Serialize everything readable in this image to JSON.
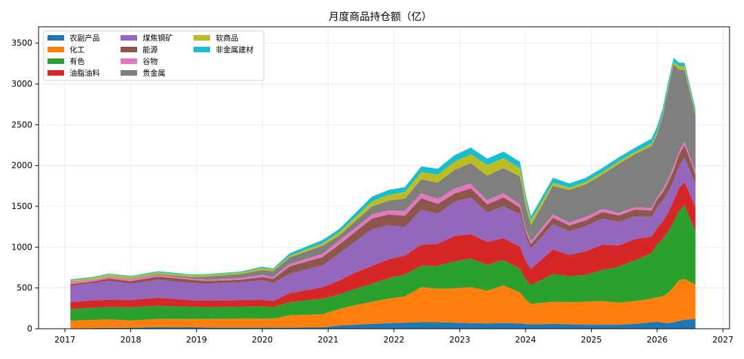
{
  "chart_data": {
    "type": "area",
    "stacked": true,
    "title": "月度商品持仓额（亿）",
    "xlabel": "",
    "ylabel": "",
    "xlim": [
      2016.6,
      2027.1
    ],
    "ylim": [
      0,
      3700
    ],
    "x_ticks": [
      2017,
      2018,
      2019,
      2020,
      2021,
      2022,
      2023,
      2024,
      2025,
      2026,
      2027
    ],
    "y_ticks": [
      0,
      500,
      1000,
      1500,
      2000,
      2500,
      3000,
      3500
    ],
    "grid": true,
    "legend_position": "top-left",
    "x": [
      "2017-02",
      "2017-06",
      "2017-09",
      "2018-01",
      "2018-06",
      "2018-12",
      "2019-03",
      "2019-09",
      "2020-01",
      "2020-03",
      "2020-06",
      "2020-12",
      "2021-03",
      "2021-06",
      "2021-09",
      "2021-12",
      "2022-03",
      "2022-06",
      "2022-09",
      "2022-12",
      "2023-03",
      "2023-06",
      "2023-09",
      "2023-12",
      "2024-01",
      "2024-02",
      "2024-06",
      "2024-09",
      "2024-12",
      "2025-03",
      "2025-06",
      "2025-09",
      "2025-12",
      "2026-01",
      "2026-02",
      "2026-03",
      "2026-04",
      "2026-05",
      "2026-06",
      "2026-08"
    ],
    "series": [
      {
        "name": "农副产品",
        "color": "#1f77b4",
        "values": [
          5,
          8,
          10,
          12,
          20,
          20,
          15,
          15,
          15,
          15,
          15,
          18,
          40,
          50,
          60,
          70,
          75,
          80,
          80,
          75,
          70,
          65,
          70,
          65,
          60,
          55,
          60,
          55,
          50,
          50,
          50,
          60,
          80,
          85,
          75,
          70,
          80,
          95,
          110,
          120
        ]
      },
      {
        "name": "化工",
        "color": "#ff7f0e",
        "values": [
          95,
          100,
          105,
          90,
          100,
          100,
          105,
          110,
          110,
          110,
          150,
          160,
          200,
          240,
          270,
          300,
          320,
          430,
          410,
          420,
          440,
          400,
          460,
          380,
          300,
          250,
          270,
          270,
          280,
          290,
          270,
          280,
          290,
          300,
          320,
          370,
          430,
          500,
          500,
          420
        ]
      },
      {
        "name": "有色",
        "color": "#2ca02c",
        "values": [
          140,
          150,
          150,
          160,
          160,
          150,
          145,
          145,
          150,
          140,
          160,
          190,
          180,
          200,
          220,
          250,
          270,
          260,
          280,
          330,
          350,
          320,
          310,
          290,
          250,
          230,
          340,
          320,
          330,
          380,
          440,
          500,
          560,
          650,
          700,
          750,
          800,
          850,
          900,
          650
        ]
      },
      {
        "name": "油脂油料",
        "color": "#d62728",
        "values": [
          85,
          90,
          90,
          90,
          100,
          80,
          80,
          80,
          80,
          75,
          110,
          140,
          170,
          200,
          220,
          230,
          230,
          260,
          270,
          310,
          300,
          280,
          270,
          270,
          220,
          200,
          300,
          260,
          290,
          310,
          260,
          260,
          200,
          200,
          220,
          230,
          260,
          280,
          290,
          300
        ]
      },
      {
        "name": "煤焦钢矿",
        "color": "#9467bd",
        "values": [
          200,
          210,
          230,
          200,
          220,
          210,
          210,
          220,
          240,
          220,
          240,
          270,
          330,
          380,
          450,
          420,
          350,
          430,
          370,
          420,
          450,
          360,
          390,
          400,
          300,
          250,
          310,
          290,
          310,
          320,
          290,
          280,
          240,
          260,
          250,
          250,
          240,
          270,
          300,
          280
        ]
      },
      {
        "name": "能源",
        "color": "#8c564b",
        "values": [
          20,
          20,
          30,
          30,
          40,
          40,
          30,
          30,
          40,
          50,
          90,
          100,
          110,
          120,
          130,
          130,
          140,
          140,
          120,
          100,
          110,
          100,
          110,
          80,
          60,
          50,
          80,
          70,
          70,
          80,
          80,
          80,
          80,
          90,
          100,
          120,
          130,
          140,
          150,
          120
        ]
      },
      {
        "name": "谷物",
        "color": "#e377c2",
        "values": [
          30,
          25,
          25,
          25,
          20,
          15,
          15,
          20,
          25,
          25,
          30,
          40,
          50,
          50,
          50,
          50,
          60,
          60,
          60,
          60,
          60,
          50,
          50,
          40,
          40,
          35,
          40,
          35,
          40,
          40,
          30,
          30,
          30,
          30,
          40,
          40,
          50,
          40,
          40,
          40
        ]
      },
      {
        "name": "贵金属",
        "color": "#7f7f7f",
        "values": [
          0,
          0,
          0,
          5,
          10,
          20,
          40,
          50,
          60,
          70,
          80,
          100,
          60,
          80,
          100,
          120,
          150,
          170,
          200,
          230,
          250,
          300,
          310,
          340,
          280,
          200,
          350,
          400,
          400,
          420,
          600,
          650,
          760,
          770,
          900,
          1100,
          1250,
          1000,
          880,
          680
        ]
      },
      {
        "name": "软商品",
        "color": "#bcbd22",
        "values": [
          20,
          20,
          25,
          25,
          20,
          20,
          20,
          20,
          25,
          20,
          20,
          30,
          40,
          50,
          60,
          70,
          80,
          90,
          100,
          100,
          110,
          130,
          120,
          100,
          80,
          60,
          40,
          30,
          30,
          30,
          30,
          30,
          30,
          30,
          30,
          30,
          30,
          40,
          50,
          40
        ]
      },
      {
        "name": "非金属建材",
        "color": "#17becf",
        "values": [
          10,
          10,
          10,
          10,
          15,
          10,
          10,
          10,
          15,
          15,
          30,
          40,
          40,
          50,
          60,
          60,
          60,
          70,
          70,
          80,
          80,
          80,
          80,
          80,
          60,
          50,
          60,
          50,
          50,
          50,
          50,
          50,
          60,
          65,
          60,
          60,
          50,
          45,
          40,
          45
        ]
      }
    ]
  }
}
